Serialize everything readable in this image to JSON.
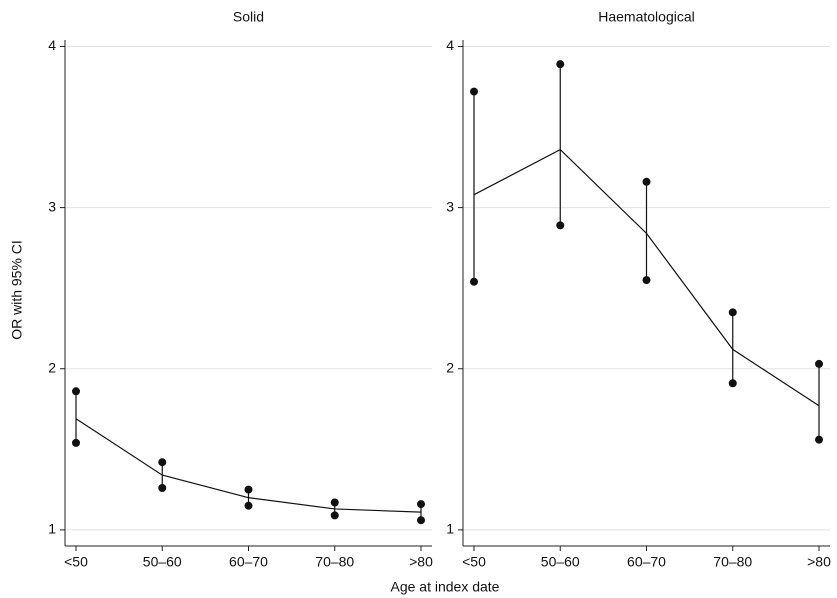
{
  "axis_labels": {
    "x": "Age at index date",
    "y": "OR with 95% CI"
  },
  "chart_data": [
    {
      "type": "line",
      "title": "Solid",
      "categories": [
        "<50",
        "50–60",
        "60–70",
        "70–80",
        ">80"
      ],
      "values": [
        1.69,
        1.34,
        1.2,
        1.13,
        1.11
      ],
      "lower": [
        1.54,
        1.26,
        1.15,
        1.09,
        1.06
      ],
      "upper": [
        1.86,
        1.42,
        1.25,
        1.17,
        1.16
      ],
      "color": "#111111",
      "ylim": [
        0.9,
        4.04
      ],
      "yticks": [
        1,
        2,
        3,
        4
      ],
      "grid": true
    },
    {
      "type": "line",
      "title": "Haematological",
      "categories": [
        "<50",
        "50–60",
        "60–70",
        "70–80",
        ">80"
      ],
      "values": [
        3.08,
        3.36,
        2.84,
        2.12,
        1.77
      ],
      "lower": [
        2.54,
        2.89,
        2.55,
        1.91,
        1.56
      ],
      "upper": [
        3.72,
        3.89,
        3.16,
        2.35,
        2.03
      ],
      "color": "#111111",
      "ylim": [
        0.9,
        4.04
      ],
      "yticks": [
        1,
        2,
        3,
        4
      ],
      "grid": true
    }
  ]
}
